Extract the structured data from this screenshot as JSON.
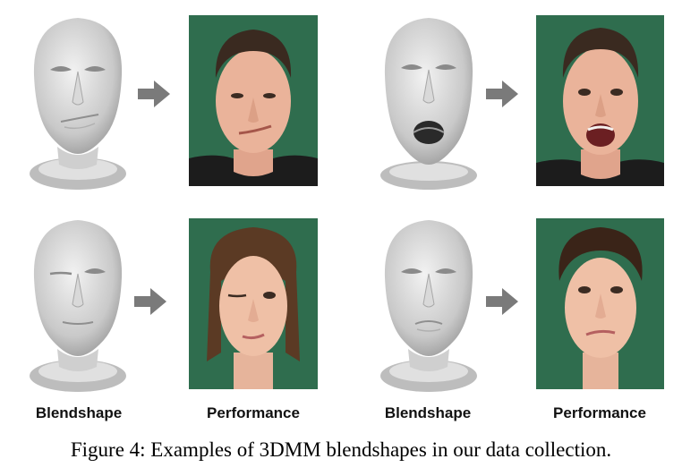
{
  "figure": {
    "caption": "Figure 4: Examples of 3DMM blendshapes in our data collection.",
    "column_labels": {
      "left_blendshape": "Blendshape",
      "left_performance": "Performance",
      "right_blendshape": "Blendshape",
      "right_performance": "Performance"
    },
    "colors": {
      "photo_background": "#2f6d4e",
      "arrow": "#7a7a7a",
      "mesh": "#c9c9c9"
    }
  }
}
